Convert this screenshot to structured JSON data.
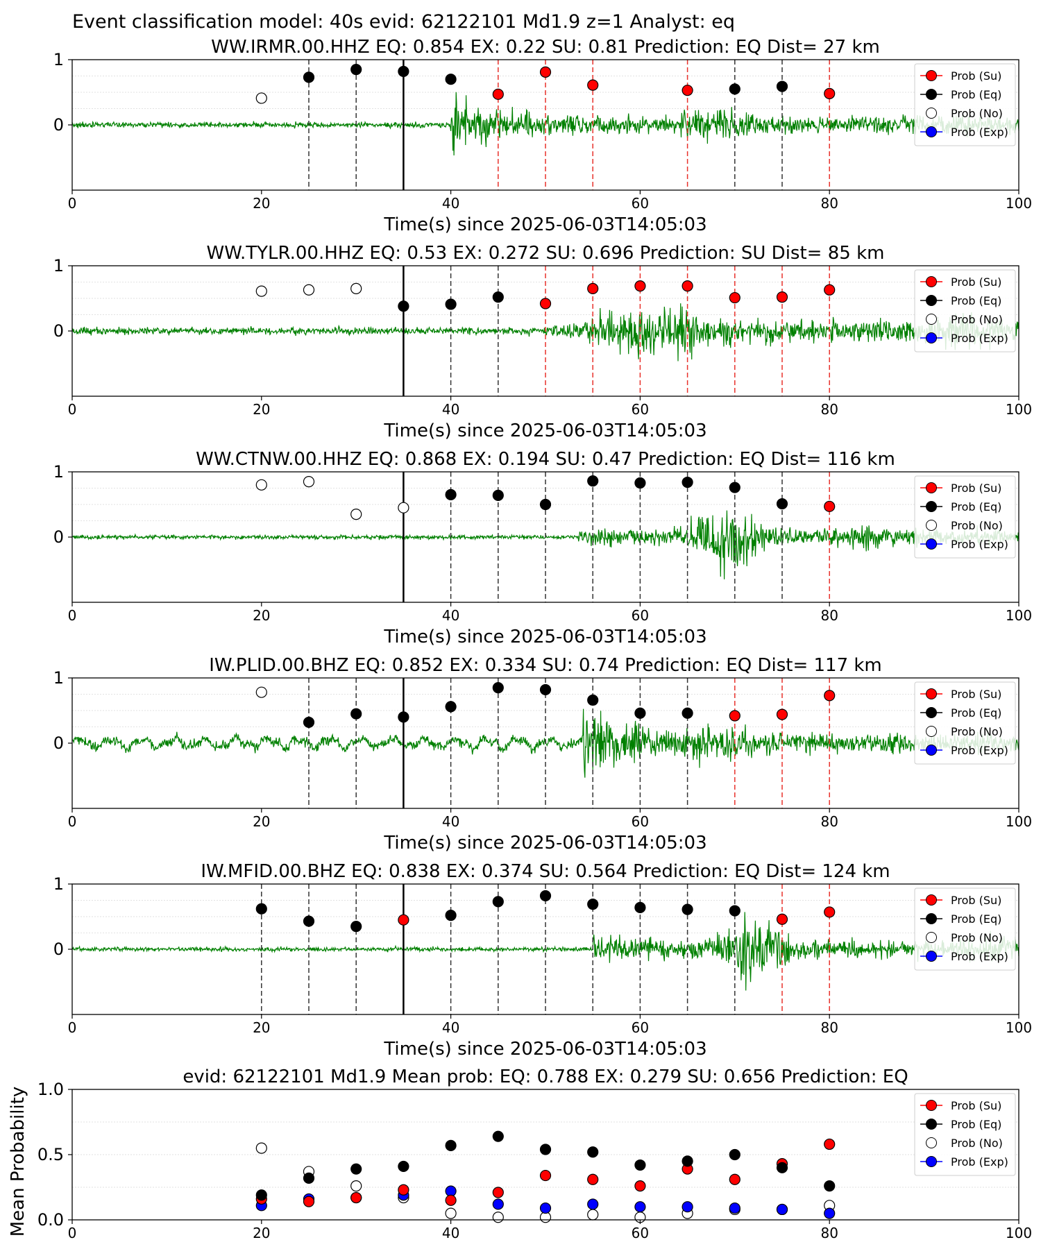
{
  "figure": {
    "suptitle": "Event classification model: 40s evid: 62122101 Md1.9 z=1 Analyst: eq"
  },
  "chart_data": [
    {
      "type": "scatter",
      "title": "WW.IRMR.00.HHZ   EQ: 0.854  EX: 0.22  SU: 0.81   Prediction: EQ    Dist= 27 km",
      "xlabel": "Time(s) since 2025-06-03T14:05:03",
      "xlim": [
        0,
        100
      ],
      "ylim": [
        -1,
        1
      ],
      "xticks": [
        "0",
        "20",
        "40",
        "60",
        "80",
        "100"
      ],
      "yticks": [
        "1",
        "0"
      ],
      "pick_time": 35,
      "waveform": {
        "onset": 40,
        "peak_amp": 1.0,
        "noise_amp": 0.04,
        "envelope": "impulsive"
      },
      "windows": [
        {
          "x": 25,
          "line": "eq"
        },
        {
          "x": 30,
          "line": "eq"
        },
        {
          "x": 45,
          "line": "su"
        },
        {
          "x": 50,
          "line": "su"
        },
        {
          "x": 55,
          "line": "su"
        },
        {
          "x": 65,
          "line": "su"
        },
        {
          "x": 70,
          "line": "eq"
        },
        {
          "x": 75,
          "line": "eq"
        },
        {
          "x": 80,
          "line": "su"
        }
      ],
      "points": [
        {
          "x": 20,
          "y": 0.41,
          "class": "No"
        },
        {
          "x": 25,
          "y": 0.73,
          "class": "Eq"
        },
        {
          "x": 30,
          "y": 0.85,
          "class": "Eq"
        },
        {
          "x": 35,
          "y": 0.82,
          "class": "Eq"
        },
        {
          "x": 40,
          "y": 0.7,
          "class": "Eq"
        },
        {
          "x": 45,
          "y": 0.47,
          "class": "Su"
        },
        {
          "x": 50,
          "y": 0.81,
          "class": "Su"
        },
        {
          "x": 55,
          "y": 0.61,
          "class": "Su"
        },
        {
          "x": 65,
          "y": 0.53,
          "class": "Su"
        },
        {
          "x": 70,
          "y": 0.55,
          "class": "Eq"
        },
        {
          "x": 75,
          "y": 0.59,
          "class": "Eq"
        },
        {
          "x": 80,
          "y": 0.48,
          "class": "Su"
        }
      ]
    },
    {
      "type": "scatter",
      "title": "WW.TYLR.00.HHZ   EQ: 0.53  EX: 0.272  SU: 0.696   Prediction: SU    Dist= 85 km",
      "xlabel": "Time(s) since 2025-06-03T14:05:03",
      "xlim": [
        0,
        100
      ],
      "ylim": [
        -1,
        1
      ],
      "xticks": [
        "0",
        "20",
        "40",
        "60",
        "80",
        "100"
      ],
      "yticks": [
        "1",
        "0"
      ],
      "pick_time": 35,
      "waveform": {
        "onset": 48,
        "peak_amp": 0.85,
        "noise_amp": 0.05,
        "envelope": "emergent"
      },
      "windows": [
        {
          "x": 40,
          "line": "eq"
        },
        {
          "x": 45,
          "line": "eq"
        },
        {
          "x": 50,
          "line": "su"
        },
        {
          "x": 55,
          "line": "su"
        },
        {
          "x": 60,
          "line": "su"
        },
        {
          "x": 65,
          "line": "su"
        },
        {
          "x": 70,
          "line": "su"
        },
        {
          "x": 75,
          "line": "su"
        },
        {
          "x": 80,
          "line": "su"
        }
      ],
      "points": [
        {
          "x": 20,
          "y": 0.61,
          "class": "No"
        },
        {
          "x": 25,
          "y": 0.63,
          "class": "No"
        },
        {
          "x": 30,
          "y": 0.65,
          "class": "No"
        },
        {
          "x": 35,
          "y": 0.38,
          "class": "Eq"
        },
        {
          "x": 40,
          "y": 0.41,
          "class": "Eq"
        },
        {
          "x": 45,
          "y": 0.52,
          "class": "Eq"
        },
        {
          "x": 50,
          "y": 0.42,
          "class": "Su"
        },
        {
          "x": 55,
          "y": 0.65,
          "class": "Su"
        },
        {
          "x": 60,
          "y": 0.69,
          "class": "Su"
        },
        {
          "x": 65,
          "y": 0.69,
          "class": "Su"
        },
        {
          "x": 70,
          "y": 0.51,
          "class": "Su"
        },
        {
          "x": 75,
          "y": 0.52,
          "class": "Su"
        },
        {
          "x": 80,
          "y": 0.63,
          "class": "Su"
        }
      ]
    },
    {
      "type": "scatter",
      "title": "WW.CTNW.00.HHZ   EQ: 0.868  EX: 0.194  SU: 0.47   Prediction: EQ    Dist= 116 km",
      "xlabel": "Time(s) since 2025-06-03T14:05:03",
      "xlim": [
        0,
        100
      ],
      "ylim": [
        -1,
        1
      ],
      "xticks": [
        "0",
        "20",
        "40",
        "60",
        "80",
        "100"
      ],
      "yticks": [
        "1",
        "0"
      ],
      "pick_time": 35,
      "waveform": {
        "onset": 53.5,
        "peak_amp": 0.95,
        "noise_amp": 0.03,
        "envelope": "burst"
      },
      "windows": [
        {
          "x": 40,
          "line": "eq"
        },
        {
          "x": 45,
          "line": "eq"
        },
        {
          "x": 50,
          "line": "eq"
        },
        {
          "x": 55,
          "line": "eq"
        },
        {
          "x": 60,
          "line": "eq"
        },
        {
          "x": 65,
          "line": "eq"
        },
        {
          "x": 70,
          "line": "eq"
        },
        {
          "x": 75,
          "line": "eq"
        },
        {
          "x": 80,
          "line": "su"
        }
      ],
      "points": [
        {
          "x": 20,
          "y": 0.8,
          "class": "No"
        },
        {
          "x": 25,
          "y": 0.85,
          "class": "No"
        },
        {
          "x": 30,
          "y": 0.35,
          "class": "No"
        },
        {
          "x": 35,
          "y": 0.45,
          "class": "No"
        },
        {
          "x": 40,
          "y": 0.65,
          "class": "Eq"
        },
        {
          "x": 45,
          "y": 0.64,
          "class": "Eq"
        },
        {
          "x": 50,
          "y": 0.5,
          "class": "Eq"
        },
        {
          "x": 55,
          "y": 0.86,
          "class": "Eq"
        },
        {
          "x": 60,
          "y": 0.83,
          "class": "Eq"
        },
        {
          "x": 65,
          "y": 0.84,
          "class": "Eq"
        },
        {
          "x": 70,
          "y": 0.76,
          "class": "Eq"
        },
        {
          "x": 75,
          "y": 0.51,
          "class": "Eq"
        },
        {
          "x": 80,
          "y": 0.47,
          "class": "Su"
        }
      ]
    },
    {
      "type": "scatter",
      "title": "IW.PLID.00.BHZ   EQ: 0.852  EX: 0.334  SU: 0.74   Prediction: EQ    Dist= 117 km",
      "xlabel": "Time(s) since 2025-06-03T14:05:03",
      "xlim": [
        0,
        100
      ],
      "ylim": [
        -1,
        1
      ],
      "xticks": [
        "0",
        "20",
        "40",
        "60",
        "80",
        "100"
      ],
      "yticks": [
        "1",
        "0"
      ],
      "pick_time": 35,
      "waveform": {
        "onset": 54,
        "peak_amp": 1.0,
        "noise_amp": 0.07,
        "envelope": "impulsive",
        "pre_wobble": true
      },
      "windows": [
        {
          "x": 25,
          "line": "eq"
        },
        {
          "x": 30,
          "line": "eq"
        },
        {
          "x": 40,
          "line": "eq"
        },
        {
          "x": 45,
          "line": "eq"
        },
        {
          "x": 50,
          "line": "eq"
        },
        {
          "x": 55,
          "line": "eq"
        },
        {
          "x": 60,
          "line": "eq"
        },
        {
          "x": 65,
          "line": "eq"
        },
        {
          "x": 70,
          "line": "su"
        },
        {
          "x": 75,
          "line": "su"
        },
        {
          "x": 80,
          "line": "su"
        }
      ],
      "points": [
        {
          "x": 20,
          "y": 0.78,
          "class": "No"
        },
        {
          "x": 25,
          "y": 0.32,
          "class": "Eq"
        },
        {
          "x": 30,
          "y": 0.45,
          "class": "Eq"
        },
        {
          "x": 35,
          "y": 0.4,
          "class": "Eq"
        },
        {
          "x": 40,
          "y": 0.56,
          "class": "Eq"
        },
        {
          "x": 45,
          "y": 0.85,
          "class": "Eq"
        },
        {
          "x": 50,
          "y": 0.82,
          "class": "Eq"
        },
        {
          "x": 55,
          "y": 0.66,
          "class": "Eq"
        },
        {
          "x": 60,
          "y": 0.46,
          "class": "Eq"
        },
        {
          "x": 65,
          "y": 0.46,
          "class": "Eq"
        },
        {
          "x": 70,
          "y": 0.42,
          "class": "Su"
        },
        {
          "x": 75,
          "y": 0.44,
          "class": "Su"
        },
        {
          "x": 80,
          "y": 0.73,
          "class": "Su"
        }
      ]
    },
    {
      "type": "scatter",
      "title": "IW.MFID.00.BHZ   EQ: 0.838  EX: 0.374  SU: 0.564   Prediction: EQ    Dist= 124 km",
      "xlabel": "Time(s) since 2025-06-03T14:05:03",
      "xlim": [
        0,
        100
      ],
      "ylim": [
        -1,
        1
      ],
      "xticks": [
        "0",
        "20",
        "40",
        "60",
        "80",
        "100"
      ],
      "yticks": [
        "1",
        "0"
      ],
      "pick_time": 35,
      "waveform": {
        "onset": 55,
        "peak_amp": 0.95,
        "noise_amp": 0.03,
        "envelope": "twin"
      },
      "windows": [
        {
          "x": 20,
          "line": "eq"
        },
        {
          "x": 25,
          "line": "eq"
        },
        {
          "x": 30,
          "line": "eq"
        },
        {
          "x": 40,
          "line": "eq"
        },
        {
          "x": 45,
          "line": "eq"
        },
        {
          "x": 50,
          "line": "eq"
        },
        {
          "x": 55,
          "line": "eq"
        },
        {
          "x": 60,
          "line": "eq"
        },
        {
          "x": 65,
          "line": "eq"
        },
        {
          "x": 70,
          "line": "eq"
        },
        {
          "x": 75,
          "line": "su"
        },
        {
          "x": 80,
          "line": "su"
        }
      ],
      "points": [
        {
          "x": 20,
          "y": 0.62,
          "class": "Eq"
        },
        {
          "x": 25,
          "y": 0.43,
          "class": "Eq"
        },
        {
          "x": 30,
          "y": 0.35,
          "class": "Eq"
        },
        {
          "x": 35,
          "y": 0.45,
          "class": "Su"
        },
        {
          "x": 40,
          "y": 0.52,
          "class": "Eq"
        },
        {
          "x": 45,
          "y": 0.73,
          "class": "Eq"
        },
        {
          "x": 50,
          "y": 0.82,
          "class": "Eq"
        },
        {
          "x": 55,
          "y": 0.69,
          "class": "Eq"
        },
        {
          "x": 60,
          "y": 0.64,
          "class": "Eq"
        },
        {
          "x": 65,
          "y": 0.61,
          "class": "Eq"
        },
        {
          "x": 70,
          "y": 0.59,
          "class": "Eq"
        },
        {
          "x": 75,
          "y": 0.46,
          "class": "Su"
        },
        {
          "x": 80,
          "y": 0.57,
          "class": "Su"
        }
      ]
    },
    {
      "type": "scatter",
      "title": "evid: 62122101  Md1.9   Mean prob:   EQ: 0.788  EX: 0.279  SU: 0.656   Prediction: EQ",
      "ylabel": "Mean Probability",
      "xlim": [
        0,
        100
      ],
      "ylim": [
        0,
        1
      ],
      "xticks": [
        "0",
        "20",
        "40",
        "60",
        "80",
        "100"
      ],
      "yticks": [
        "1.0",
        "0.5",
        "0.0"
      ],
      "x": [
        20,
        25,
        30,
        35,
        40,
        45,
        50,
        55,
        60,
        65,
        70,
        75,
        80
      ],
      "series": [
        {
          "name": "Prob (No)",
          "class": "No",
          "values": [
            0.55,
            0.37,
            0.26,
            0.17,
            0.05,
            0.02,
            0.02,
            0.04,
            0.02,
            0.05,
            0.08,
            0.08,
            0.11
          ]
        },
        {
          "name": "Prob (Exp)",
          "class": "Exp",
          "values": [
            0.11,
            0.16,
            0.17,
            0.19,
            0.22,
            0.12,
            0.09,
            0.12,
            0.1,
            0.1,
            0.09,
            0.08,
            0.05
          ]
        },
        {
          "name": "Prob (Su)",
          "class": "Su",
          "values": [
            0.16,
            0.14,
            0.17,
            0.23,
            0.15,
            0.21,
            0.34,
            0.31,
            0.26,
            0.39,
            0.31,
            0.43,
            0.58
          ]
        },
        {
          "name": "Prob (Eq)",
          "class": "Eq",
          "values": [
            0.19,
            0.32,
            0.39,
            0.41,
            0.57,
            0.64,
            0.54,
            0.52,
            0.42,
            0.45,
            0.5,
            0.4,
            0.26
          ]
        }
      ]
    }
  ],
  "legend": {
    "placement": "top-right",
    "items": [
      {
        "label": "Prob (Su)",
        "class": "Su"
      },
      {
        "label": "Prob (Eq)",
        "class": "Eq"
      },
      {
        "label": "Prob (No)",
        "class": "No"
      },
      {
        "label": "Prob (Exp)",
        "class": "Exp"
      }
    ]
  },
  "colors": {
    "Su": "#ff0000",
    "Eq": "#000000",
    "No": "#ffffff",
    "Exp": "#0000ff",
    "waveform": "#008000",
    "window_eq": "#333333",
    "window_su": "#e8302a",
    "pick": "#000000",
    "grid": "#d9d9d9"
  }
}
